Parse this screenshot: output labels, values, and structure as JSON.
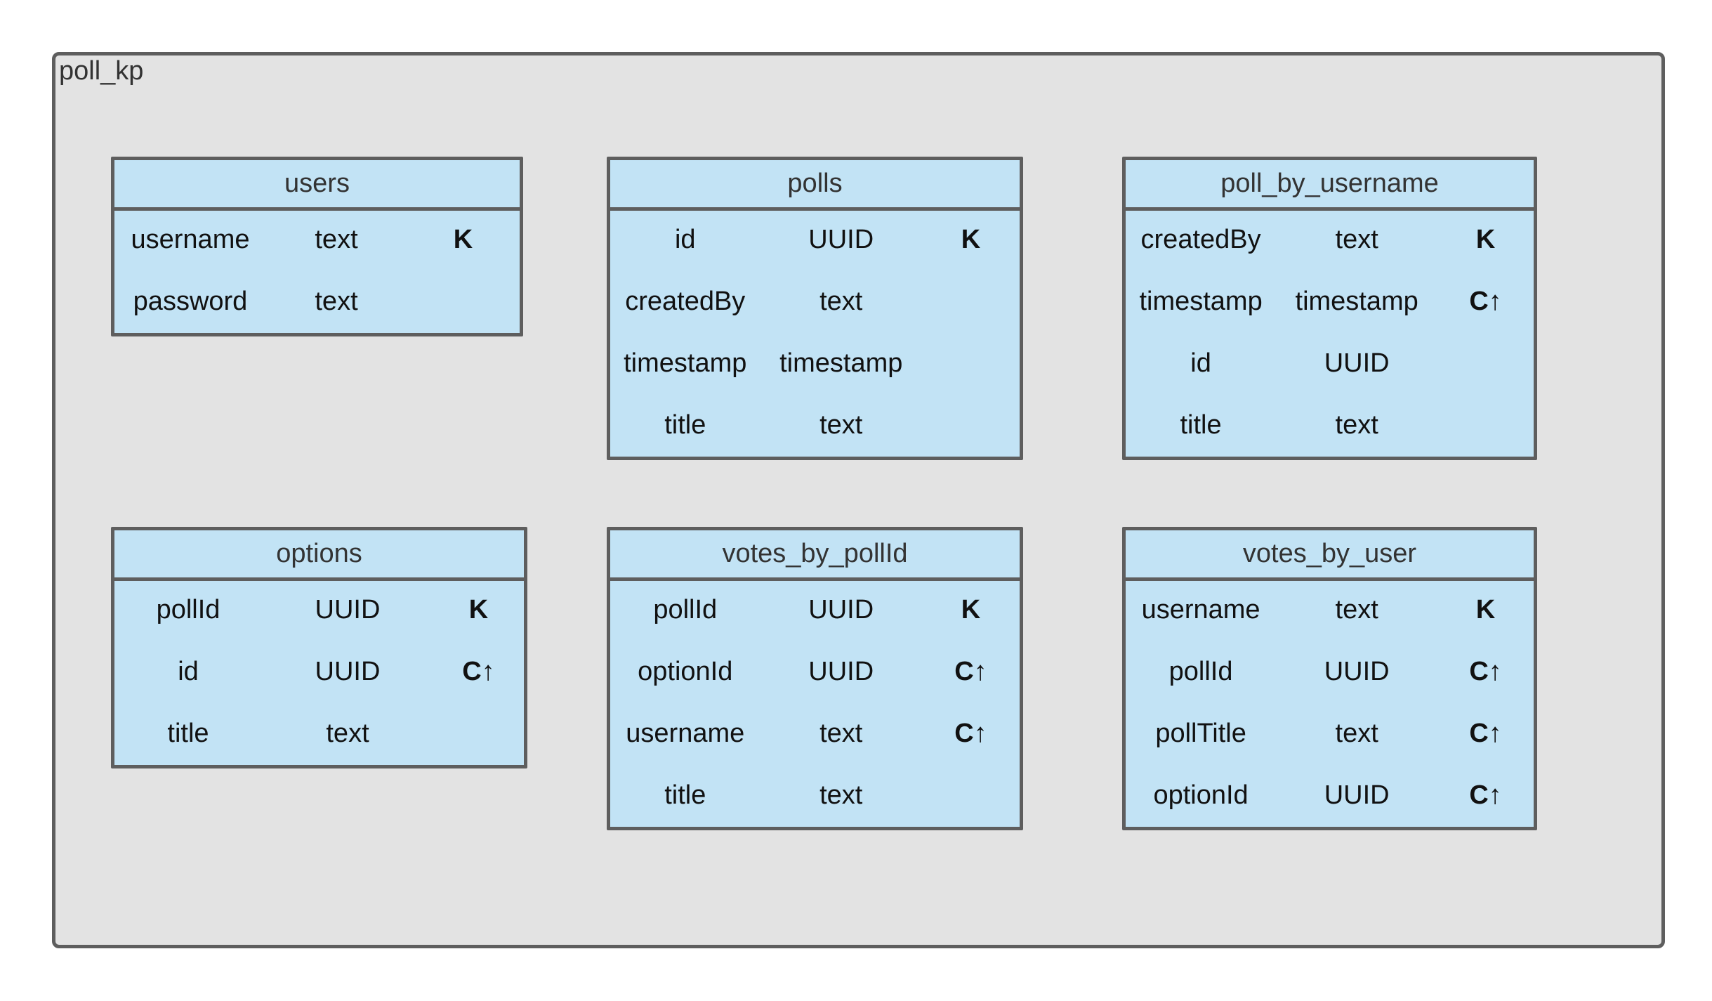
{
  "keyspace": {
    "name": "poll_kp"
  },
  "tables": [
    {
      "name": "users",
      "columns": [
        {
          "name": "username",
          "type": "text",
          "key": "K"
        },
        {
          "name": "password",
          "type": "text",
          "key": ""
        }
      ]
    },
    {
      "name": "polls",
      "columns": [
        {
          "name": "id",
          "type": "UUID",
          "key": "K"
        },
        {
          "name": "createdBy",
          "type": "text",
          "key": ""
        },
        {
          "name": "timestamp",
          "type": "timestamp",
          "key": ""
        },
        {
          "name": "title",
          "type": "text",
          "key": ""
        }
      ]
    },
    {
      "name": "poll_by_username",
      "columns": [
        {
          "name": "createdBy",
          "type": "text",
          "key": "K"
        },
        {
          "name": "timestamp",
          "type": "timestamp",
          "key": "C↑"
        },
        {
          "name": "id",
          "type": "UUID",
          "key": ""
        },
        {
          "name": "title",
          "type": "text",
          "key": ""
        }
      ]
    },
    {
      "name": "options",
      "columns": [
        {
          "name": "pollId",
          "type": "UUID",
          "key": "K"
        },
        {
          "name": "id",
          "type": "UUID",
          "key": "C↑"
        },
        {
          "name": "title",
          "type": "text",
          "key": ""
        }
      ]
    },
    {
      "name": "votes_by_pollId",
      "columns": [
        {
          "name": "pollId",
          "type": "UUID",
          "key": "K"
        },
        {
          "name": "optionId",
          "type": "UUID",
          "key": "C↑"
        },
        {
          "name": "username",
          "type": "text",
          "key": "C↑"
        },
        {
          "name": "title",
          "type": "text",
          "key": ""
        }
      ]
    },
    {
      "name": "votes_by_user",
      "columns": [
        {
          "name": "username",
          "type": "text",
          "key": "K"
        },
        {
          "name": "pollId",
          "type": "UUID",
          "key": "C↑"
        },
        {
          "name": "pollTitle",
          "type": "text",
          "key": "C↑"
        },
        {
          "name": "optionId",
          "type": "UUID",
          "key": "C↑"
        }
      ]
    }
  ]
}
